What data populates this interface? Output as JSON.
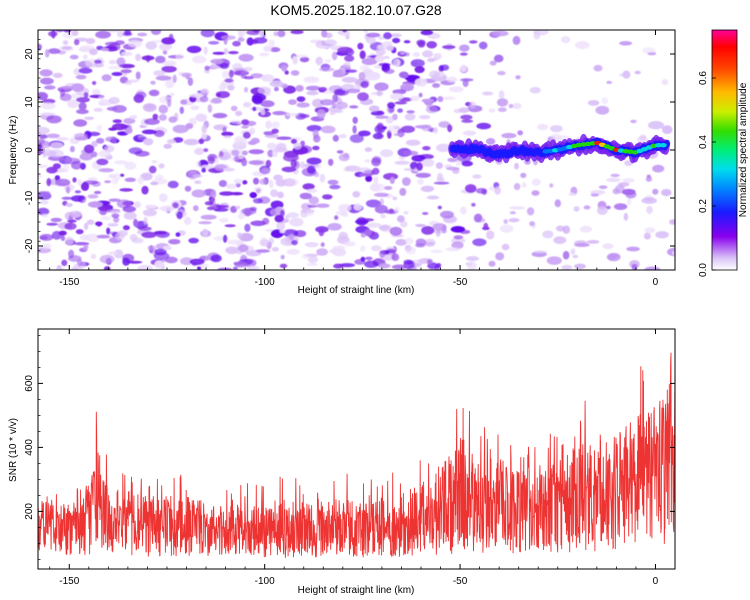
{
  "title": "KOM5.2025.182.10.07.G28",
  "chart_data": [
    {
      "type": "heatmap",
      "xlabel": "Height of straight line (km)",
      "ylabel": "Frequency (Hz)",
      "xlim": [
        -158,
        5
      ],
      "ylim": [
        -25,
        25
      ],
      "x_ticks": [
        -150,
        -100,
        -50,
        0
      ],
      "y_ticks": [
        -20,
        -10,
        0,
        10,
        20
      ],
      "colorbar": {
        "label": "Normalized spectral amplitude",
        "range": [
          0.0,
          0.75
        ],
        "ticks": [
          0.0,
          0.2,
          0.4,
          0.6
        ]
      },
      "ridge": {
        "description": "narrow-band signal near 0 Hz from about -50 km to 5 km",
        "x": [
          -52,
          -45,
          -40,
          -35,
          -30,
          -25,
          -20,
          -15,
          -10,
          -5,
          0,
          3
        ],
        "frequency": [
          0.5,
          0,
          -1,
          0,
          -0.5,
          0,
          1,
          1.5,
          0,
          -0.5,
          1,
          1
        ],
        "amplitude": [
          0.2,
          0.25,
          0.22,
          0.25,
          0.28,
          0.35,
          0.55,
          0.7,
          0.6,
          0.45,
          0.5,
          0.4
        ]
      }
    },
    {
      "type": "line",
      "xlabel": "Height of straight line (km)",
      "ylabel": "SNR (10 * v/v)",
      "xlim": [
        -158,
        5
      ],
      "ylim": [
        20,
        770
      ],
      "x_ticks": [
        -150,
        -100,
        -50,
        0
      ],
      "y_ticks": [
        200,
        400,
        600
      ],
      "series": [
        {
          "color": "#ee3333",
          "x": [
            -158,
            -150,
            -145,
            -143,
            -140,
            -130,
            -120,
            -110,
            -100,
            -90,
            -80,
            -70,
            -60,
            -50,
            -45,
            -40,
            -35,
            -30,
            -25,
            -20,
            -15,
            -10,
            -5,
            0,
            2,
            4
          ],
          "y_center": [
            170,
            175,
            200,
            300,
            195,
            165,
            150,
            150,
            140,
            135,
            140,
            150,
            170,
            230,
            230,
            240,
            220,
            210,
            230,
            260,
            270,
            280,
            300,
            330,
            420,
            480
          ],
          "y_peak": [
            290,
            260,
            290,
            540,
            350,
            320,
            330,
            270,
            310,
            330,
            320,
            300,
            380,
            560,
            480,
            470,
            420,
            400,
            470,
            550,
            540,
            580,
            660,
            690,
            770,
            720
          ]
        }
      ]
    }
  ]
}
